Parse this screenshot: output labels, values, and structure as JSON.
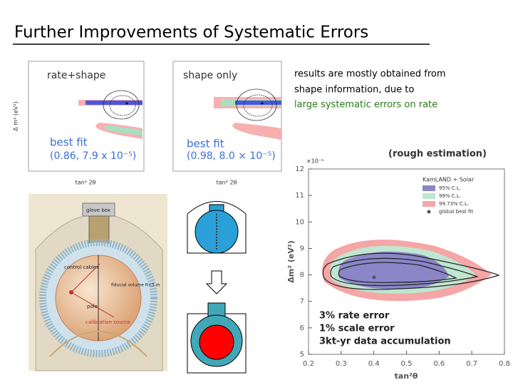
{
  "title": "Further Improvements of Systematic Errors",
  "note": {
    "lines": [
      "results are mostly obtained from",
      "shape information, due to"
    ],
    "highlight": "large systematic errors on rate"
  },
  "top_plots": [
    {
      "label": "rate+shape",
      "fit_title": "best fit",
      "fit_value": "(0.86, 7.9 x 10⁻⁵)"
    },
    {
      "label": "shape only",
      "fit_title": "best fit",
      "fit_value": "(0.98, 8.0 × 10⁻⁵)"
    }
  ],
  "top_axes": {
    "x_label": "tan² 2θ",
    "y_label": "Δ m² (eV²)"
  },
  "detector": {
    "labels": [
      "glove box",
      "control cables",
      "fiducial volume R<5 m",
      "pole",
      "calibration source"
    ]
  },
  "estimate": {
    "heading": "(rough estimation)",
    "multiplier": "×10⁻⁵",
    "y_label": "Δm² (eV²)",
    "x_label": "tan²θ",
    "yticks": [
      5,
      6,
      7,
      8,
      9,
      10,
      11,
      12
    ],
    "xticks": [
      0.2,
      0.3,
      0.4,
      0.5,
      0.6,
      0.7,
      0.8
    ],
    "legend": {
      "title": "KamLAND + Solar",
      "entries": [
        "95% C.L.",
        "99% C.L.",
        "99.73% C.L.",
        "global best fit"
      ]
    },
    "annotations": [
      "3% rate error",
      "1% scale error",
      "3kt-yr data accumulation"
    ]
  }
}
